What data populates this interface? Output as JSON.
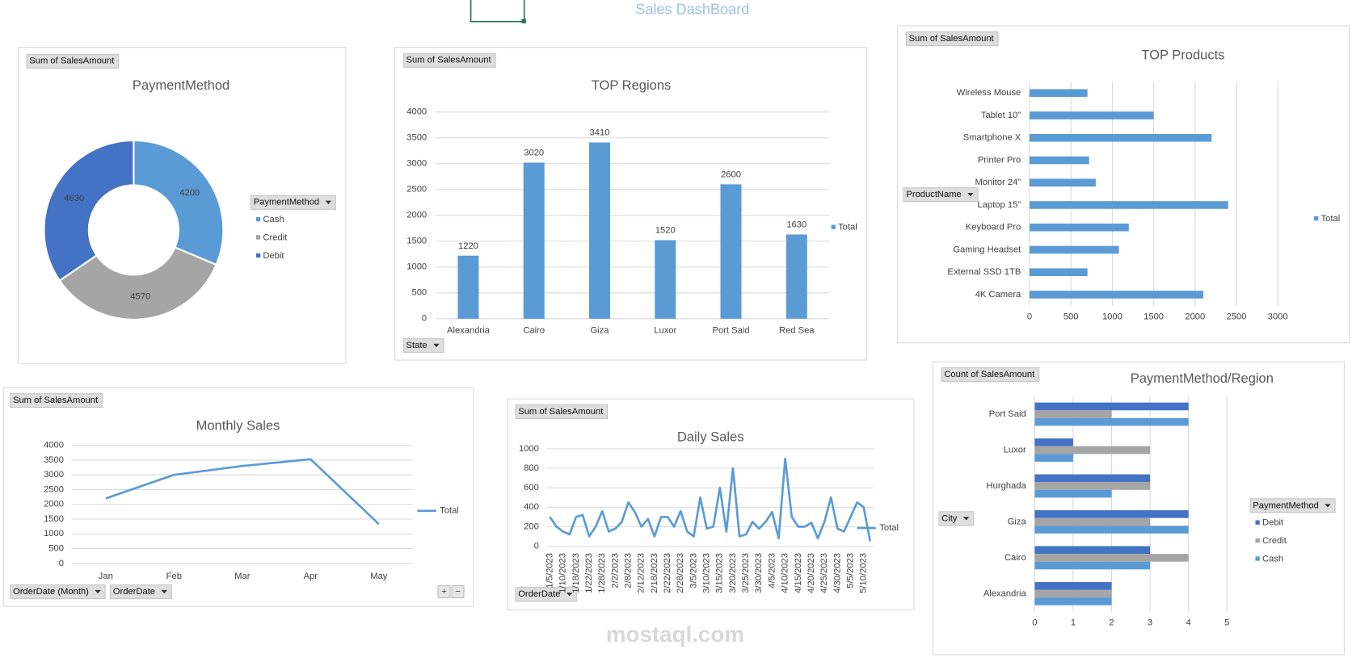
{
  "page_title": "Sales DashBoard",
  "watermark": "mostaql.com",
  "chart_data": [
    {
      "type": "donut",
      "title": "PaymentMethod",
      "value_field": "Sum of SalesAmount",
      "legend_field": "PaymentMethod",
      "categories": [
        "Cash",
        "Credit",
        "Debit"
      ],
      "values": [
        4200,
        4570,
        4630
      ],
      "colors": [
        "#5b9bd5",
        "#a5a5a5",
        "#4472c4"
      ]
    },
    {
      "type": "bar",
      "title": "TOP Regions",
      "value_field": "Sum of SalesAmount",
      "axis_fields": [
        "State"
      ],
      "categories": [
        "Alexandria",
        "Cairo",
        "Giza",
        "Luxor",
        "Port Said",
        "Red Sea"
      ],
      "series": [
        {
          "name": "Total",
          "color": "#5b9bd5",
          "values": [
            1220,
            3020,
            3410,
            1520,
            2600,
            1630
          ]
        }
      ],
      "ylim": [
        0,
        4000
      ],
      "yticks": [
        0,
        500,
        1000,
        1500,
        2000,
        2500,
        3000,
        3500,
        4000
      ],
      "grid": true,
      "data_labels": true
    },
    {
      "type": "barh",
      "title": "TOP Products",
      "value_field": "Sum of SalesAmount",
      "axis_fields": [
        "ProductName"
      ],
      "categories": [
        "4K Camera",
        "External SSD 1TB",
        "Gaming Headset",
        "Keyboard Pro",
        "Laptop 15\"",
        "Monitor 24\"",
        "Printer Pro",
        "Smartphone X",
        "Tablet 10\"",
        "Wireless Mouse"
      ],
      "series": [
        {
          "name": "Total",
          "color": "#5b9bd5",
          "values": [
            2100,
            700,
            1080,
            1200,
            2400,
            800,
            720,
            2200,
            1500,
            700
          ]
        }
      ],
      "xlim": [
        0,
        3000
      ],
      "xticks": [
        0,
        500,
        1000,
        1500,
        2000,
        2500,
        3000
      ],
      "grid": true
    },
    {
      "type": "line",
      "title": "Monthly Sales",
      "value_field": "Sum of SalesAmount",
      "axis_fields": [
        "OrderDate (Month)",
        "OrderDate"
      ],
      "categories": [
        "Jan",
        "Feb",
        "Mar",
        "Apr",
        "May"
      ],
      "series": [
        {
          "name": "Total",
          "color": "#5b9bd5",
          "values": [
            2200,
            3000,
            3300,
            3530,
            1330
          ]
        }
      ],
      "ylim": [
        0,
        4000
      ],
      "yticks": [
        0,
        500,
        1000,
        1500,
        2000,
        2500,
        3000,
        3500,
        4000
      ],
      "grid": true
    },
    {
      "type": "line",
      "title": "Daily Sales",
      "value_field": "Sum of SalesAmount",
      "axis_fields": [
        "OrderDate"
      ],
      "categories": [
        "1/5/2023",
        null,
        "1/10/2023",
        null,
        "1/18/2023",
        null,
        "1/22/2023",
        null,
        "1/28/2023",
        null,
        "2/2/2023",
        null,
        "2/8/2023",
        null,
        "2/12/2023",
        null,
        "2/18/2023",
        null,
        "2/22/2023",
        null,
        "2/28/2023",
        null,
        "3/5/2023",
        null,
        "3/10/2023",
        null,
        "3/15/2023",
        null,
        "3/20/2023",
        null,
        "3/25/2023",
        null,
        "3/30/2023",
        null,
        "4/5/2023",
        null,
        "4/10/2023",
        null,
        "4/15/2023",
        null,
        "4/20/2023",
        null,
        "4/25/2023",
        null,
        "4/30/2023",
        null,
        "5/5/2023",
        null,
        "5/10/2023",
        null
      ],
      "series": [
        {
          "name": "Total",
          "color": "#5b9bd5",
          "values": [
            300,
            200,
            150,
            120,
            300,
            320,
            100,
            200,
            360,
            150,
            180,
            250,
            450,
            350,
            200,
            280,
            100,
            300,
            300,
            200,
            360,
            150,
            100,
            500,
            180,
            200,
            600,
            150,
            800,
            100,
            120,
            250,
            180,
            250,
            350,
            80,
            900,
            300,
            200,
            200,
            240,
            80,
            250,
            500,
            180,
            150,
            300,
            450,
            400,
            50
          ]
        }
      ],
      "ylim": [
        0,
        1000
      ],
      "yticks": [
        0,
        200,
        400,
        600,
        800,
        1000
      ],
      "grid": true
    },
    {
      "type": "barh",
      "title": "PaymentMethod/Region",
      "value_field": "Count of SalesAmount",
      "axis_fields": [
        "City"
      ],
      "legend_field": "PaymentMethod",
      "categories": [
        "Alexandria",
        "Cairo",
        "Giza",
        "Hurghada",
        "Luxor",
        "Port Said"
      ],
      "series": [
        {
          "name": "Debit",
          "color": "#4472c4",
          "values": [
            2,
            3,
            4,
            3,
            1,
            4
          ]
        },
        {
          "name": "Credit",
          "color": "#a5a5a5",
          "values": [
            2,
            4,
            3,
            3,
            3,
            2
          ]
        },
        {
          "name": "Cash",
          "color": "#5b9bd5",
          "values": [
            2,
            3,
            4,
            2,
            1,
            4
          ]
        }
      ],
      "xlim": [
        0,
        5
      ],
      "xticks": [
        0,
        1,
        2,
        3,
        4,
        5
      ],
      "grid": true
    }
  ]
}
